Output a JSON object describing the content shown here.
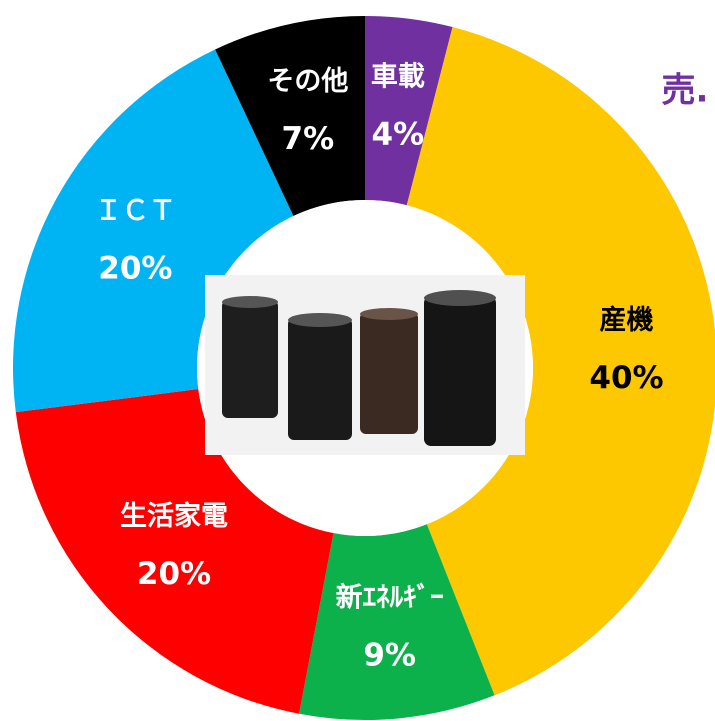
{
  "chart_data": {
    "type": "donut",
    "title": "売.",
    "categories": [
      "車載",
      "産機",
      "新ｴﾈﾙｷﾞｰ",
      "生活家電",
      "ＩＣＴ",
      "その他"
    ],
    "values": [
      4,
      40,
      9,
      20,
      20,
      7
    ],
    "value_labels": [
      "4%",
      "40%",
      "9%",
      "20%",
      "20%",
      "7%"
    ],
    "colors": [
      "#7030a0",
      "#fdc800",
      "#0db14b",
      "#ff0000",
      "#00b4f4",
      "#000000"
    ],
    "label_colors": [
      "#ffffff",
      "#000000",
      "#ffffff",
      "#ffffff",
      "#ffffff",
      "#ffffff"
    ]
  }
}
